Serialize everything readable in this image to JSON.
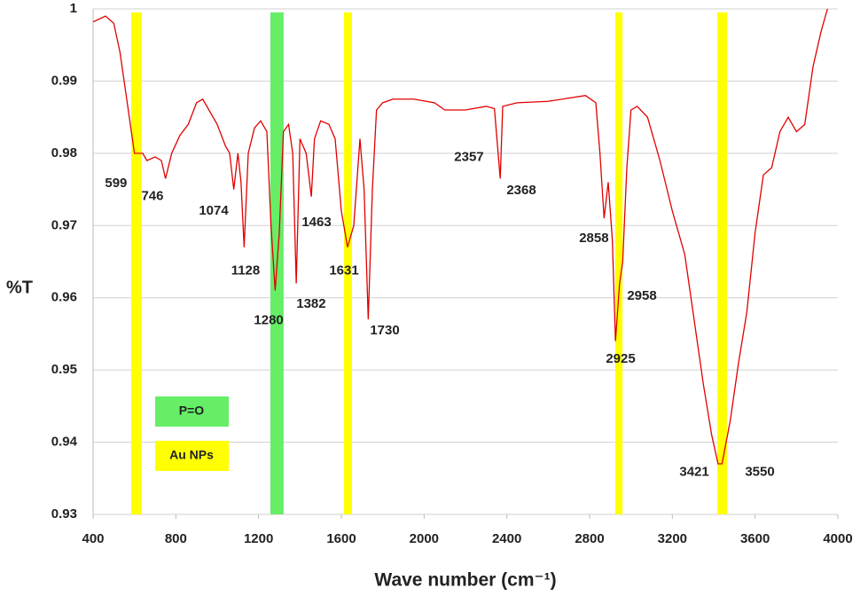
{
  "chart_data": {
    "type": "line",
    "xlabel": "Wave number (cm⁻¹)",
    "ylabel": "%T",
    "xlim": [
      400,
      4000
    ],
    "ylim": [
      0.93,
      1
    ],
    "xticks": [
      400,
      800,
      1200,
      1600,
      2000,
      2400,
      2800,
      3200,
      3600,
      4000
    ],
    "yticks": [
      0.93,
      0.94,
      0.95,
      0.96,
      0.97,
      0.98,
      0.99,
      1
    ],
    "grid": true,
    "series": [
      {
        "color": "#e00000",
        "x": [
          400,
          460,
          500,
          530,
          560,
          580,
          600,
          640,
          660,
          700,
          730,
          750,
          780,
          820,
          860,
          900,
          930,
          960,
          1000,
          1040,
          1060,
          1080,
          1100,
          1115,
          1130,
          1150,
          1180,
          1210,
          1240,
          1260,
          1280,
          1300,
          1320,
          1345,
          1365,
          1382,
          1400,
          1430,
          1455,
          1470,
          1500,
          1540,
          1570,
          1600,
          1630,
          1660,
          1690,
          1710,
          1730,
          1750,
          1770,
          1800,
          1850,
          1950,
          2050,
          2100,
          2200,
          2300,
          2340,
          2355,
          2368,
          2380,
          2450,
          2600,
          2780,
          2830,
          2850,
          2870,
          2890,
          2910,
          2925,
          2945,
          2960,
          2980,
          3000,
          3030,
          3080,
          3140,
          3200,
          3260,
          3300,
          3350,
          3390,
          3421,
          3440,
          3480,
          3520,
          3560,
          3600,
          3640,
          3680,
          3720,
          3760,
          3800,
          3840,
          3880,
          3920,
          3950
        ],
        "values": [
          0.9982,
          0.999,
          0.998,
          0.994,
          0.988,
          0.984,
          0.98,
          0.98,
          0.979,
          0.9795,
          0.979,
          0.9765,
          0.98,
          0.9825,
          0.984,
          0.987,
          0.9875,
          0.986,
          0.984,
          0.981,
          0.98,
          0.975,
          0.98,
          0.976,
          0.967,
          0.98,
          0.9835,
          0.9845,
          0.983,
          0.97,
          0.961,
          0.969,
          0.983,
          0.984,
          0.98,
          0.962,
          0.982,
          0.98,
          0.974,
          0.982,
          0.9845,
          0.984,
          0.982,
          0.972,
          0.967,
          0.97,
          0.982,
          0.975,
          0.957,
          0.975,
          0.986,
          0.987,
          0.9875,
          0.9875,
          0.987,
          0.986,
          0.986,
          0.9865,
          0.9862,
          0.981,
          0.9765,
          0.9865,
          0.987,
          0.9872,
          0.988,
          0.987,
          0.98,
          0.971,
          0.976,
          0.968,
          0.954,
          0.962,
          0.965,
          0.978,
          0.986,
          0.9865,
          0.985,
          0.979,
          0.972,
          0.966,
          0.958,
          0.948,
          0.941,
          0.937,
          0.937,
          0.943,
          0.951,
          0.958,
          0.969,
          0.977,
          0.978,
          0.983,
          0.985,
          0.983,
          0.984,
          0.992,
          0.997,
          1.0
        ]
      }
    ],
    "highlight_bands": [
      {
        "name": "P=O",
        "color": "#66ee66",
        "ranges": [
          [
            1257,
            1321
          ]
        ]
      },
      {
        "name": "Au NPs",
        "color": "#ffff00",
        "ranges": [
          [
            584,
            635
          ],
          [
            1613,
            1651
          ],
          [
            2924,
            2959
          ],
          [
            3417,
            3464
          ]
        ]
      }
    ],
    "annotations": [
      {
        "text": "599",
        "x": 511,
        "y": 0.9758
      },
      {
        "text": "746",
        "x": 687,
        "y": 0.974
      },
      {
        "text": "1074",
        "x": 983,
        "y": 0.972
      },
      {
        "text": "1128",
        "x": 1137,
        "y": 0.9637
      },
      {
        "text": "1280",
        "x": 1249,
        "y": 0.9568
      },
      {
        "text": "1382",
        "x": 1454,
        "y": 0.9591
      },
      {
        "text": "1463",
        "x": 1480,
        "y": 0.9704
      },
      {
        "text": "1631",
        "x": 1613,
        "y": 0.9637
      },
      {
        "text": "1730",
        "x": 1810,
        "y": 0.9554
      },
      {
        "text": "2357",
        "x": 2217,
        "y": 0.9794
      },
      {
        "text": "2368",
        "x": 2470,
        "y": 0.9748
      },
      {
        "text": "2858",
        "x": 2821,
        "y": 0.9682
      },
      {
        "text": "2958",
        "x": 3053,
        "y": 0.9602
      },
      {
        "text": "2925",
        "x": 2950,
        "y": 0.9515
      },
      {
        "text": "3421",
        "x": 3306,
        "y": 0.9358
      },
      {
        "text": "3550",
        "x": 3623,
        "y": 0.9358
      }
    ]
  }
}
